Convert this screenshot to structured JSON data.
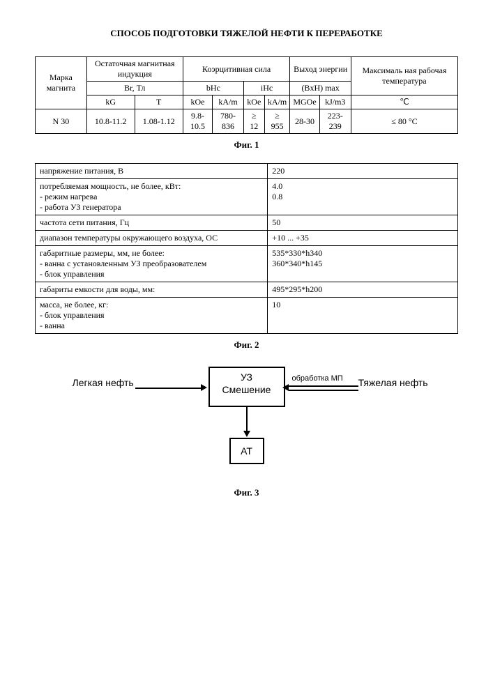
{
  "title": "СПОСОБ ПОДГОТОВКИ ТЯЖЕЛОЙ НЕФТИ К ПЕРЕРАБОТКЕ",
  "fig_labels": {
    "f1": "Фиг. 1",
    "f2": "Фиг. 2",
    "f3": "Фиг. 3"
  },
  "table1": {
    "h_brand": "Марка магнита",
    "h_resid": "Остаточная магнитная индукция",
    "h_coer": "Коэрцитивная сила",
    "h_energy": "Выход энергии",
    "h_temp": "Максималь ная рабочая температура",
    "h_br": "Br, Тл",
    "h_bhc": "bHc",
    "h_ihc": "iHc",
    "h_bxh": "(BxH) max",
    "u_kg": "kG",
    "u_t": "T",
    "u_koe1": "kOe",
    "u_kam1": "kA/m",
    "u_koe2": "kOe",
    "u_kam2": "kA/m",
    "u_mgoe": "MGOe",
    "u_kjm3": "kJ/m3",
    "u_c": "℃",
    "r_brand": "N 30",
    "r_kg": "10.8-11.2",
    "r_t": "1.08-1.12",
    "r_koe1": "9.8-10.5",
    "r_kam1": "780-836",
    "r_koe2": "≥ 12",
    "r_kam2": "≥ 955",
    "r_mgoe": "28-30",
    "r_kjm3": "223-239",
    "r_c": "≤ 80 °C"
  },
  "table2": {
    "rows": [
      {
        "label": "напряжение питания, В",
        "value": "220"
      },
      {
        "label": "потребляемая мощность, не более, кВт:\n- режим нагрева\n- работа УЗ генератора",
        "value": "4.0\n0.8"
      },
      {
        "label": "частота сети питания, Гц",
        "value": "50"
      },
      {
        "label": "диапазон температуры окружающего воздуха, ОС",
        "value": "+10 ... +35"
      },
      {
        "label": "габаритные размеры, мм, не более:\n- ванна с установленным УЗ преобразователем\n- блок управления",
        "value": "535*330*h340\n360*340*h145"
      },
      {
        "label": "габариты емкости для воды, мм:",
        "value": "495*295*h200"
      },
      {
        "label": "масса, не более, кг:\n- блок управления\n- ванна",
        "value": "10"
      }
    ]
  },
  "flow": {
    "left_label": "Легкая нефть",
    "right_label": "Тяжелая нефть",
    "top_small": "обработка МП",
    "box_main_l1": "УЗ",
    "box_main_l2": "Смешение",
    "box_at": "АТ"
  }
}
